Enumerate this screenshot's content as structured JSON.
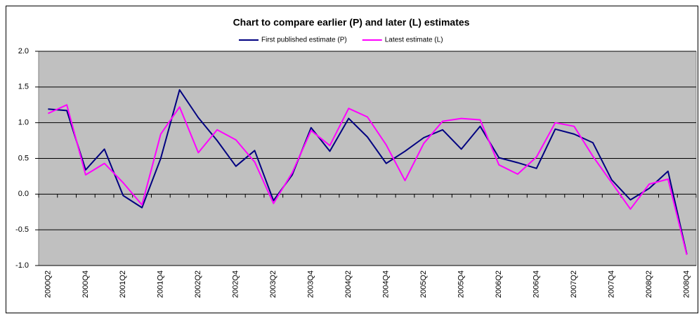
{
  "chart_data": {
    "type": "line",
    "title": "Chart to compare earlier (P) and later (L) estimates",
    "categories": [
      "2000Q2",
      null,
      "2000Q4",
      null,
      "2001Q2",
      null,
      "2001Q4",
      null,
      "2002Q2",
      null,
      "2002Q4",
      null,
      "2003Q2",
      null,
      "2003Q4",
      null,
      "2004Q2",
      null,
      "2004Q4",
      null,
      "2005Q2",
      null,
      "2005Q4",
      null,
      "2006Q2",
      null,
      "2006Q4",
      null,
      "2007Q2",
      null,
      "2007Q4",
      null,
      "2008Q2",
      null,
      "2008Q4"
    ],
    "series": [
      {
        "name": "First published estimate (P)",
        "color": "#000080",
        "values": [
          1.19,
          1.17,
          0.34,
          0.63,
          -0.02,
          -0.19,
          0.5,
          1.46,
          1.07,
          0.75,
          0.39,
          0.61,
          -0.09,
          0.27,
          0.93,
          0.6,
          1.06,
          0.8,
          0.43,
          0.6,
          0.79,
          0.9,
          0.63,
          0.95,
          0.51,
          0.44,
          0.36,
          0.91,
          0.84,
          0.72,
          0.2,
          -0.08,
          0.08,
          0.32,
          -0.84
        ]
      },
      {
        "name": "Latest estimate (L)",
        "color": "#ff00ff",
        "values": [
          1.13,
          1.25,
          0.27,
          0.43,
          0.16,
          -0.15,
          0.84,
          1.22,
          0.58,
          0.9,
          0.76,
          0.45,
          -0.13,
          0.3,
          0.89,
          0.68,
          1.2,
          1.08,
          0.69,
          0.19,
          0.71,
          1.02,
          1.06,
          1.04,
          0.41,
          0.28,
          0.52,
          1.0,
          0.95,
          0.53,
          0.16,
          -0.21,
          0.14,
          0.21,
          -0.85
        ]
      }
    ],
    "ylim": [
      -1,
      2
    ],
    "yticks": [
      {
        "value": -1,
        "label": "-1.0"
      },
      -0.5,
      {
        "value": 0,
        "label": "0.0"
      },
      0.5,
      {
        "value": 1,
        "label": "1.0"
      },
      1.5,
      {
        "value": 2,
        "label": "2.0"
      }
    ],
    "grid": true,
    "legend": "top",
    "plot_background": "#c0c0c0"
  }
}
